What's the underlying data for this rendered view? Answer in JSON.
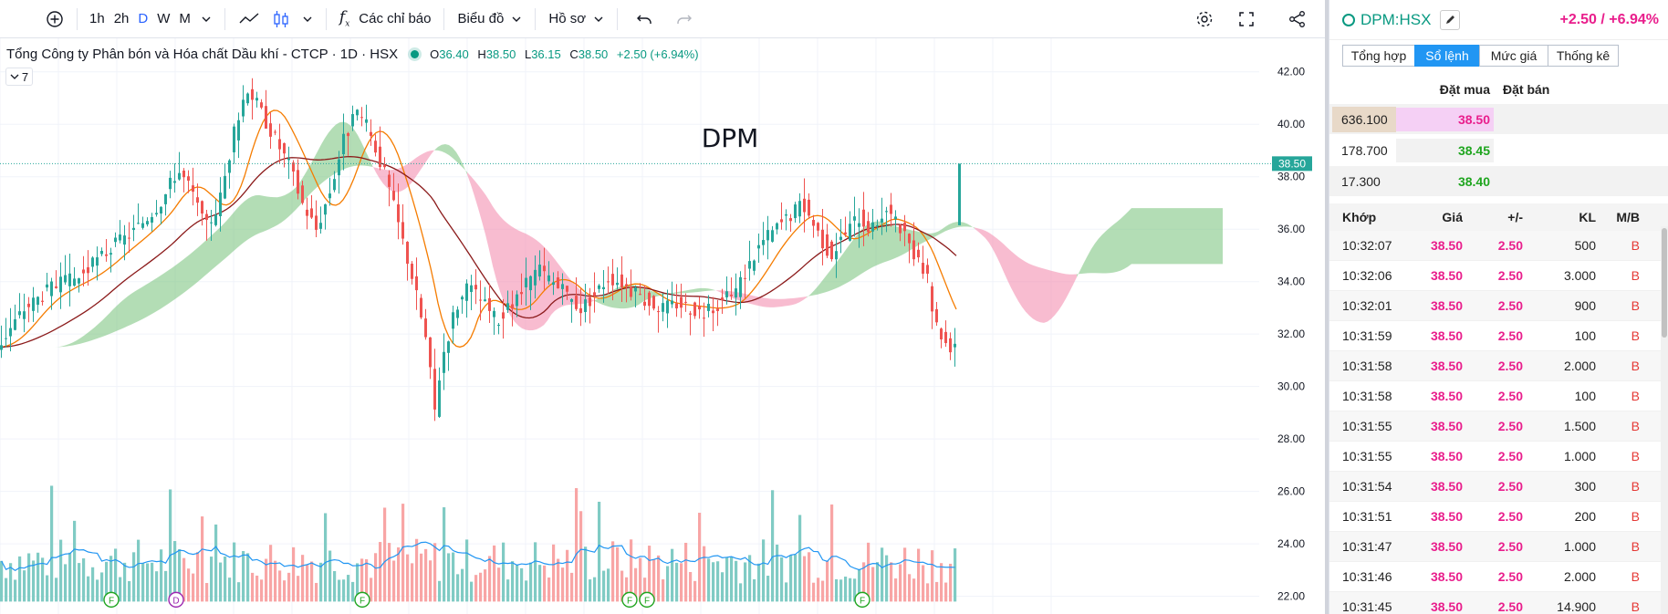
{
  "toolbar": {
    "add_symbol_icon": "plus-circle-icon",
    "intervals": [
      "1h",
      "2h",
      "D",
      "W",
      "M"
    ],
    "active_interval": "D",
    "indicators_label": "Các chỉ báo",
    "chart_type_label": "Biểu đồ",
    "profile_label": "Hồ sơ"
  },
  "legend": {
    "title": "Tổng Công ty Phân bón và Hóa chất Dầu khí - CTCP · 1D · HSX",
    "o_label": "O",
    "o": "36.40",
    "h_label": "H",
    "h": "38.50",
    "l_label": "L",
    "l": "36.15",
    "c_label": "C",
    "c": "38.50",
    "change": "+2.50 (+6.94%)",
    "indicator_count": "7"
  },
  "chart_data": {
    "type": "candlestick",
    "watermark": "DPM",
    "last_price": 38.5,
    "last_price_label": "38.50",
    "y_ticks": [
      "42.00",
      "40.00",
      "38.00",
      "36.00",
      "34.00",
      "32.00",
      "30.00",
      "28.00",
      "26.00",
      "24.00",
      "22.00"
    ],
    "y_tick_values": [
      42,
      40,
      38,
      36,
      34,
      32,
      30,
      28,
      26,
      24,
      22
    ],
    "ylim": [
      21.5,
      43.0
    ],
    "colors": {
      "up": "#26a69a",
      "down": "#ef5350",
      "cloud_up": "#81c784",
      "cloud_down": "#f48fb1",
      "ma_fast": "#f57c00",
      "ma_slow": "#8b1a1a",
      "vol_ma": "#2196f3"
    },
    "price_path": [
      [
        0,
        31.5
      ],
      [
        8,
        33.0
      ],
      [
        16,
        33.8
      ],
      [
        24,
        34.2
      ],
      [
        32,
        35.2
      ],
      [
        40,
        36.0
      ],
      [
        48,
        37.2
      ],
      [
        52,
        38.3
      ],
      [
        56,
        37.5
      ],
      [
        60,
        36.0
      ],
      [
        64,
        37.0
      ],
      [
        68,
        39.5
      ],
      [
        72,
        41.5
      ],
      [
        76,
        40.5
      ],
      [
        80,
        39.5
      ],
      [
        84,
        38.5
      ],
      [
        88,
        37.0
      ],
      [
        92,
        36.0
      ],
      [
        96,
        37.5
      ],
      [
        100,
        39.5
      ],
      [
        104,
        40.5
      ],
      [
        108,
        39.5
      ],
      [
        112,
        38.0
      ],
      [
        116,
        36.0
      ],
      [
        120,
        34.0
      ],
      [
        124,
        31.5
      ],
      [
        126,
        29.0
      ],
      [
        128,
        31.0
      ],
      [
        132,
        33.0
      ],
      [
        136,
        33.8
      ],
      [
        140,
        33.2
      ],
      [
        144,
        32.5
      ],
      [
        148,
        33.0
      ],
      [
        152,
        33.8
      ],
      [
        156,
        34.5
      ],
      [
        160,
        34.0
      ],
      [
        164,
        33.5
      ],
      [
        168,
        33.0
      ],
      [
        172,
        33.5
      ],
      [
        176,
        34.2
      ],
      [
        180,
        34.0
      ],
      [
        184,
        33.5
      ],
      [
        188,
        33.2
      ],
      [
        192,
        33.0
      ],
      [
        196,
        33.2
      ],
      [
        200,
        33.0
      ],
      [
        204,
        32.8
      ],
      [
        208,
        33.2
      ],
      [
        212,
        33.5
      ],
      [
        216,
        34.5
      ],
      [
        220,
        35.5
      ],
      [
        224,
        36.0
      ],
      [
        228,
        36.5
      ],
      [
        232,
        37.0
      ],
      [
        236,
        36.0
      ],
      [
        240,
        35.0
      ],
      [
        244,
        35.8
      ],
      [
        248,
        36.5
      ],
      [
        252,
        36.0
      ],
      [
        256,
        36.8
      ],
      [
        260,
        36.0
      ],
      [
        264,
        35.0
      ],
      [
        268,
        34.0
      ],
      [
        270,
        32.5
      ],
      [
        274,
        31.5
      ],
      [
        278,
        32.0
      ],
      [
        282,
        33.0
      ],
      [
        286,
        34.0
      ],
      [
        290,
        35.0
      ],
      [
        294,
        36.5
      ],
      [
        298,
        37.0
      ],
      [
        302,
        36.0
      ],
      [
        306,
        36.5
      ],
      [
        310,
        38.5
      ]
    ],
    "volume_markers": [
      "F",
      "D",
      "F",
      "F",
      "F",
      "F"
    ]
  },
  "panel": {
    "symbol": "DPM:HSX",
    "change": "+2.50 / +6.94%",
    "tabs": [
      "Tổng hợp",
      "Sổ lệnh",
      "Mức giá",
      "Thống kê"
    ],
    "active_tab": "Sổ lệnh",
    "orderbook_headers": {
      "bid": "Đặt mua",
      "ask": "Đặt bán"
    },
    "orderbook": [
      {
        "vol": "636.100",
        "price": "38.50",
        "highlight": "#f5d0f5",
        "color": "#e91e8c"
      },
      {
        "vol": "178.700",
        "price": "38.45",
        "highlight": "#f2f2f2",
        "color": "#1fa51f"
      },
      {
        "vol": "17.300",
        "price": "38.40",
        "highlight": "#f2f2f2",
        "color": "#1fa51f"
      }
    ],
    "trade_headers": {
      "time": "Khớp",
      "price": "Giá",
      "chg": "+/-",
      "vol": "KL",
      "side": "M/B"
    },
    "trades": [
      {
        "time": "10:32:07",
        "price": "38.50",
        "chg": "2.50",
        "vol": "500",
        "side": "B"
      },
      {
        "time": "10:32:06",
        "price": "38.50",
        "chg": "2.50",
        "vol": "3.000",
        "side": "B"
      },
      {
        "time": "10:32:01",
        "price": "38.50",
        "chg": "2.50",
        "vol": "900",
        "side": "B"
      },
      {
        "time": "10:31:59",
        "price": "38.50",
        "chg": "2.50",
        "vol": "100",
        "side": "B"
      },
      {
        "time": "10:31:58",
        "price": "38.50",
        "chg": "2.50",
        "vol": "2.000",
        "side": "B"
      },
      {
        "time": "10:31:58",
        "price": "38.50",
        "chg": "2.50",
        "vol": "100",
        "side": "B"
      },
      {
        "time": "10:31:55",
        "price": "38.50",
        "chg": "2.50",
        "vol": "1.500",
        "side": "B"
      },
      {
        "time": "10:31:55",
        "price": "38.50",
        "chg": "2.50",
        "vol": "1.000",
        "side": "B"
      },
      {
        "time": "10:31:54",
        "price": "38.50",
        "chg": "2.50",
        "vol": "300",
        "side": "B"
      },
      {
        "time": "10:31:51",
        "price": "38.50",
        "chg": "2.50",
        "vol": "200",
        "side": "B"
      },
      {
        "time": "10:31:47",
        "price": "38.50",
        "chg": "2.50",
        "vol": "1.000",
        "side": "B"
      },
      {
        "time": "10:31:46",
        "price": "38.50",
        "chg": "2.50",
        "vol": "2.000",
        "side": "B"
      },
      {
        "time": "10:31:45",
        "price": "38.50",
        "chg": "2.50",
        "vol": "14.900",
        "side": "B"
      }
    ]
  }
}
